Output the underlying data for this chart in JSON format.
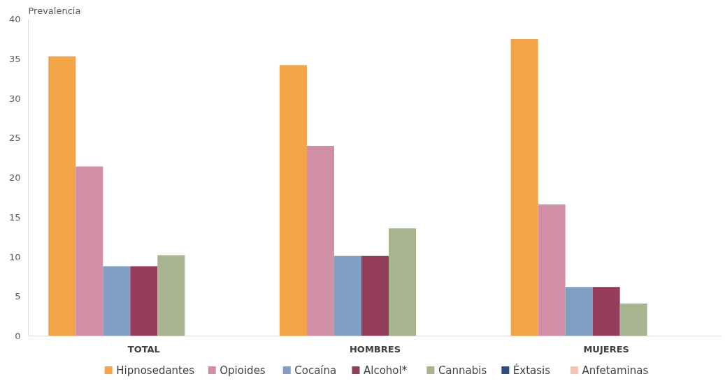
{
  "chart_data": {
    "type": "bar",
    "ylabel": "Prevalencia",
    "categories": [
      "TOTAL",
      "HOMBRES",
      "MUJERES"
    ],
    "series": [
      {
        "name": "Hipnosedantes",
        "color": "#f2a447",
        "values": [
          35.3,
          34.2,
          37.5
        ]
      },
      {
        "name": "Opioides",
        "color": "#d08fa6",
        "values": [
          21.4,
          24.0,
          16.6
        ]
      },
      {
        "name": "Cocaína",
        "color": "#7f9fc3",
        "values": [
          8.8,
          10.1,
          6.2
        ]
      },
      {
        "name": "Alcohol*",
        "color": "#943d5b",
        "values": [
          8.8,
          10.1,
          6.2
        ]
      },
      {
        "name": "Cannabis",
        "color": "#a7b48f",
        "values": [
          10.2,
          13.6,
          4.1
        ]
      },
      {
        "name": "Éxtasis",
        "color": "#2e4e7e",
        "values": [
          0,
          0,
          0
        ]
      },
      {
        "name": "Anfetaminas",
        "color": "#f4c5b3",
        "values": [
          0,
          0,
          0
        ]
      }
    ],
    "ylim": [
      0,
      40
    ],
    "yticks": [
      0,
      5,
      10,
      15,
      20,
      25,
      30,
      35,
      40
    ],
    "grid": false,
    "legend": "bottom"
  }
}
